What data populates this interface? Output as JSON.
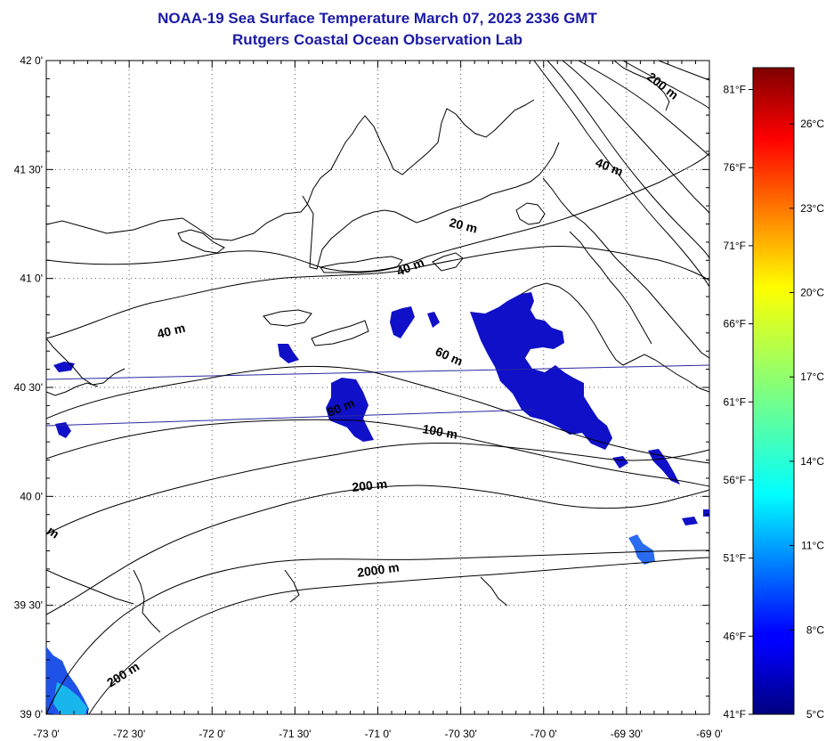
{
  "title": {
    "line1": "NOAA-19 Sea Surface Temperature March 07, 2023 2336 GMT",
    "line2": "Rutgers Coastal Ocean Observation Lab"
  },
  "axes": {
    "lat_labels": [
      "42 0'",
      "41 30'",
      "41 0'",
      "40 30'",
      "40 0'",
      "39 30'",
      "39 0'"
    ],
    "lon_labels": [
      "-73 0'",
      "-72 30'",
      "-72 0'",
      "-71 30'",
      "-71 0'",
      "-70 30'",
      "-70 0'",
      "-69 30'",
      "-69 0'"
    ],
    "lat_range": [
      39.0,
      42.0
    ],
    "lon_range": [
      -73.0,
      -69.0
    ],
    "grid": "dotted"
  },
  "contour_labels": [
    "200 m",
    "40 m",
    "20 m",
    "40 m",
    "40 m",
    "60 m",
    "80 m",
    "100 m",
    "200 m",
    "2000 m",
    "m",
    "200 m"
  ],
  "colorbar": {
    "fahrenheit": [
      "81°F",
      "76°F",
      "71°F",
      "66°F",
      "61°F",
      "56°F",
      "51°F",
      "46°F",
      "41°F"
    ],
    "celsius": [
      "26°C",
      "23°C",
      "20°C",
      "17°C",
      "14°C",
      "11°C",
      "8°C",
      "5°C"
    ],
    "range_c": [
      5,
      28
    ]
  },
  "colors": {
    "title": "#1a1aa6",
    "sst_patch": "#1010c8",
    "coast": "#000000",
    "track": "#2828a0"
  }
}
